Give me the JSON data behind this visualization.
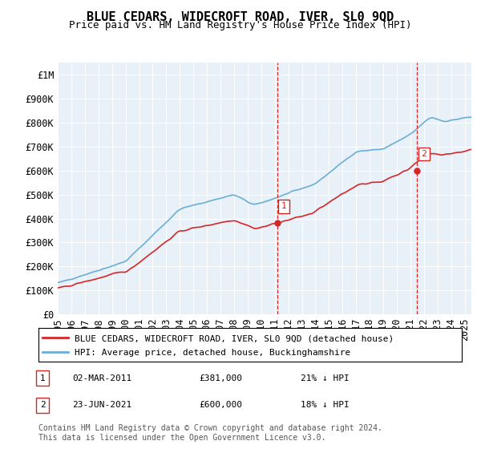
{
  "title": "BLUE CEDARS, WIDECROFT ROAD, IVER, SL0 9QD",
  "subtitle": "Price paid vs. HM Land Registry's House Price Index (HPI)",
  "ylabel_ticks": [
    "£0",
    "£100K",
    "£200K",
    "£300K",
    "£400K",
    "£500K",
    "£600K",
    "£700K",
    "£800K",
    "£900K",
    "£1M"
  ],
  "ytick_values": [
    0,
    100000,
    200000,
    300000,
    400000,
    500000,
    600000,
    700000,
    800000,
    900000,
    1000000
  ],
  "ylim": [
    0,
    1050000
  ],
  "xlim_start": 1995.0,
  "xlim_end": 2025.5,
  "hpi_color": "#6baed6",
  "price_color": "#d62728",
  "vline_color": "#d62728",
  "annotation_box_color": "#d62728",
  "background_color": "#e8f0f8",
  "grid_color": "#ffffff",
  "legend_label_red": "BLUE CEDARS, WIDECROFT ROAD, IVER, SL0 9QD (detached house)",
  "legend_label_blue": "HPI: Average price, detached house, Buckinghamshire",
  "point1_x": 2011.17,
  "point1_y": 381000,
  "point1_label": "1",
  "point1_date": "02-MAR-2011",
  "point1_price": "£381,000",
  "point1_hpi": "21% ↓ HPI",
  "point2_x": 2021.48,
  "point2_y": 600000,
  "point2_label": "2",
  "point2_date": "23-JUN-2021",
  "point2_price": "£600,000",
  "point2_hpi": "18% ↓ HPI",
  "footer": "Contains HM Land Registry data © Crown copyright and database right 2024.\nThis data is licensed under the Open Government Licence v3.0.",
  "title_fontsize": 11,
  "subtitle_fontsize": 9,
  "tick_fontsize": 8.5,
  "legend_fontsize": 8,
  "footer_fontsize": 7
}
